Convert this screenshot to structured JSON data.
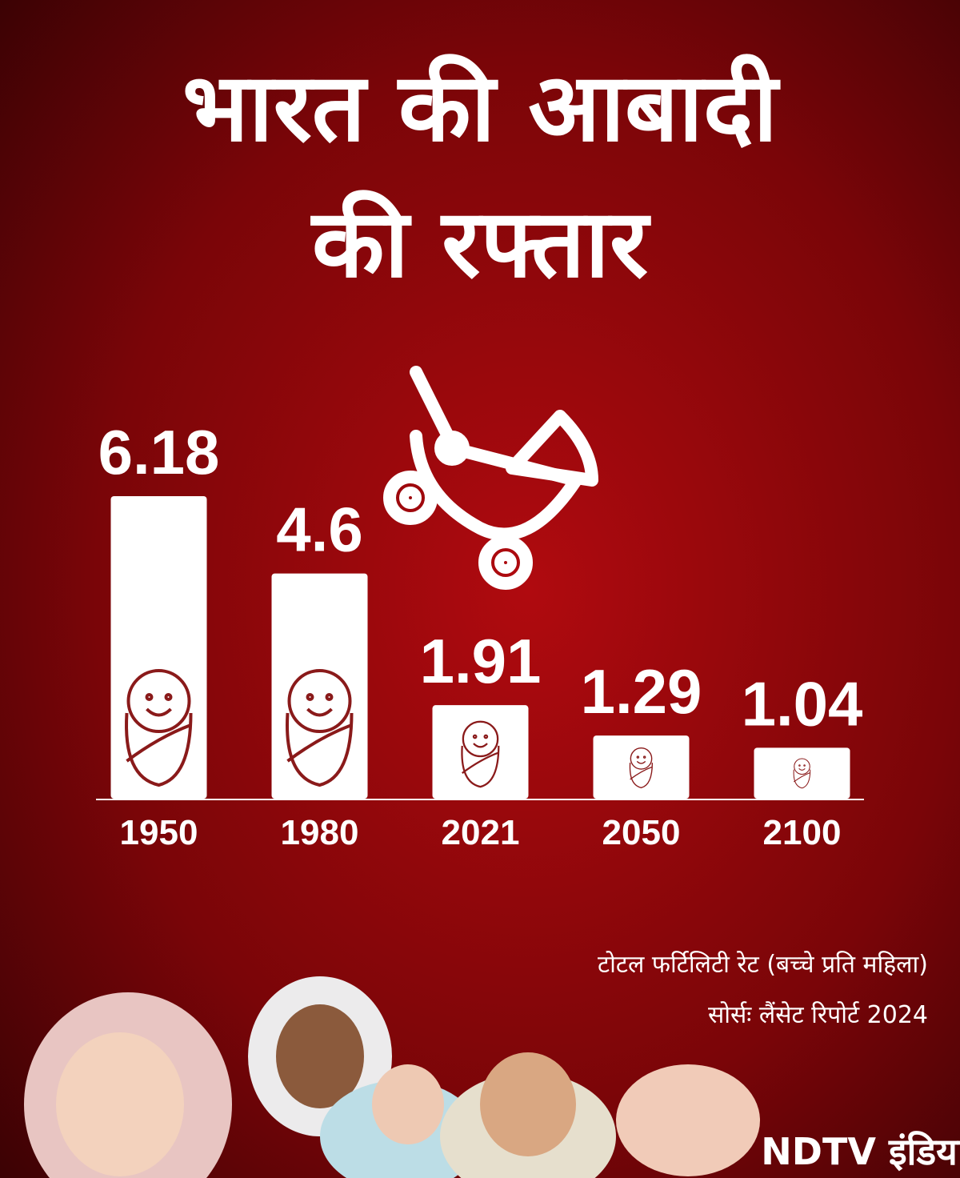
{
  "chart_data": {
    "type": "bar",
    "title": [
      "भारत की आबादी",
      "की रफ्तार"
    ],
    "categories": [
      "1950",
      "1980",
      "2021",
      "2050",
      "2100"
    ],
    "values": [
      6.18,
      4.6,
      1.91,
      1.29,
      1.04
    ],
    "color": "#ffffff",
    "note": "टोटल फर्टिलिटी रेट (बच्चे प्रति महिला)",
    "source": "सोर्सः लैंसेट रिपोर्ट 2024"
  },
  "branding": "NDTV इंडिया"
}
